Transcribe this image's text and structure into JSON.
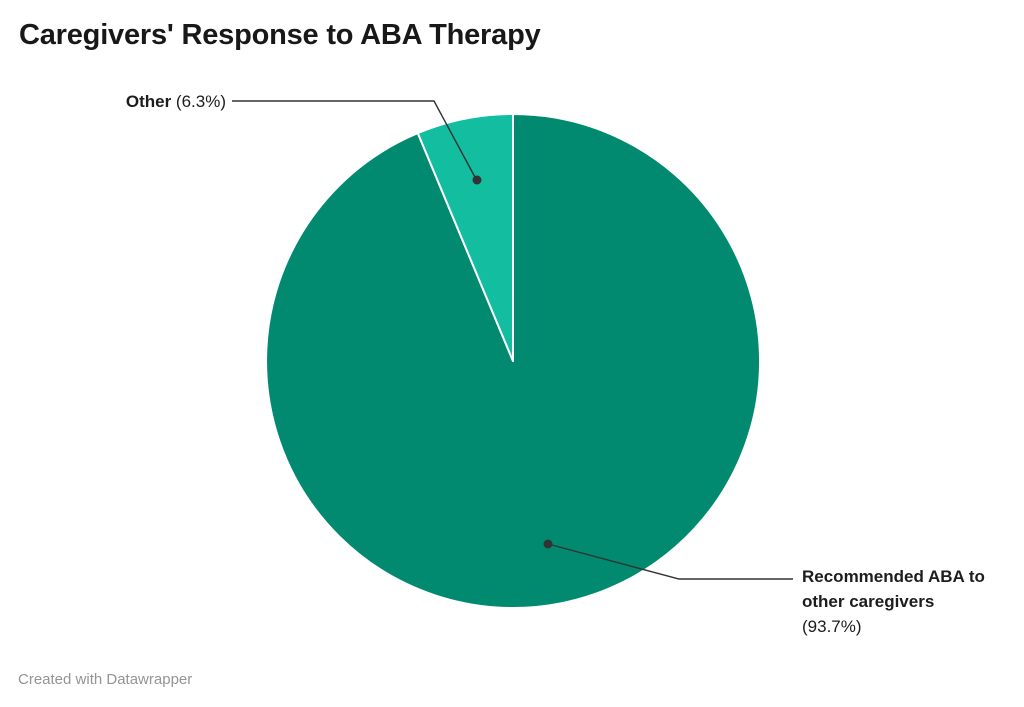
{
  "header": {
    "title": "Caregivers' Response to ABA Therapy"
  },
  "chart_data": {
    "type": "pie",
    "title": "Caregivers' Response to ABA Therapy",
    "categories": [
      "Recommended ABA to other caregivers",
      "Other"
    ],
    "values": [
      93.7,
      6.3
    ],
    "unit": "%",
    "start_angle_deg": 0,
    "direction": "clockwise",
    "slice_colors": [
      "#028a70",
      "#12bda0"
    ],
    "separator_color": "#ffffff",
    "legend_position": "none",
    "label_style": "callout-lines"
  },
  "annotations": {
    "other_label": {
      "name": "Other",
      "value_text": "(6.3%)"
    },
    "main_label": {
      "name_line1": "Recommended ABA to",
      "name_line2": "other caregivers",
      "value_text": "(93.7%)"
    }
  },
  "footer": {
    "credit": "Created with Datawrapper"
  },
  "colors": {
    "leader_line": "#333333",
    "title_text": "#181818",
    "footer_text": "#949494",
    "background": "#ffffff"
  }
}
